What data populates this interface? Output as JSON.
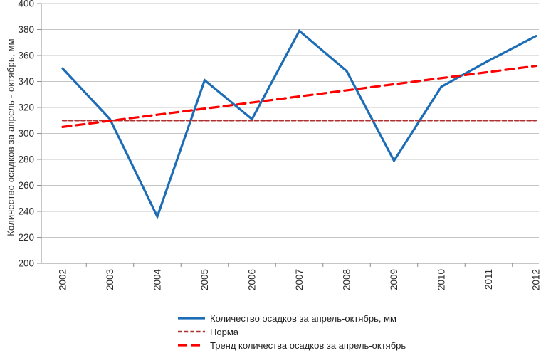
{
  "chart_data": {
    "type": "line",
    "title": "",
    "categories": [
      "2002",
      "2003",
      "2004",
      "2005",
      "2006",
      "2007",
      "2008",
      "2009",
      "2010",
      "2011",
      "2012"
    ],
    "ylabel": "Количество осадков за апрель - октябрь, мм",
    "xlabel": "",
    "ylim": [
      200,
      400
    ],
    "ytick_step": 20,
    "grid": true,
    "legend_position": "bottom",
    "colors": {
      "gridline": "#c6c6c6",
      "axis": "#8c8c8c",
      "tick_text": "#2e2e2e"
    },
    "series": [
      {
        "name": "Количество осадков за апрель-октябрь, мм",
        "values": [
          350,
          311,
          236,
          341,
          311,
          379,
          348,
          279,
          336,
          356,
          375
        ],
        "color": "#1c6db6",
        "dash": "solid"
      },
      {
        "name": "Норма",
        "values": [
          310,
          310,
          310,
          310,
          310,
          310,
          310,
          310,
          310,
          310,
          310
        ],
        "color": "#b03333",
        "dash": "short"
      },
      {
        "name": "Тренд количества осадков за апрель-октябрь",
        "trend_endpoints": [
          305,
          352
        ],
        "color": "#fe0000",
        "dash": "long"
      }
    ]
  }
}
